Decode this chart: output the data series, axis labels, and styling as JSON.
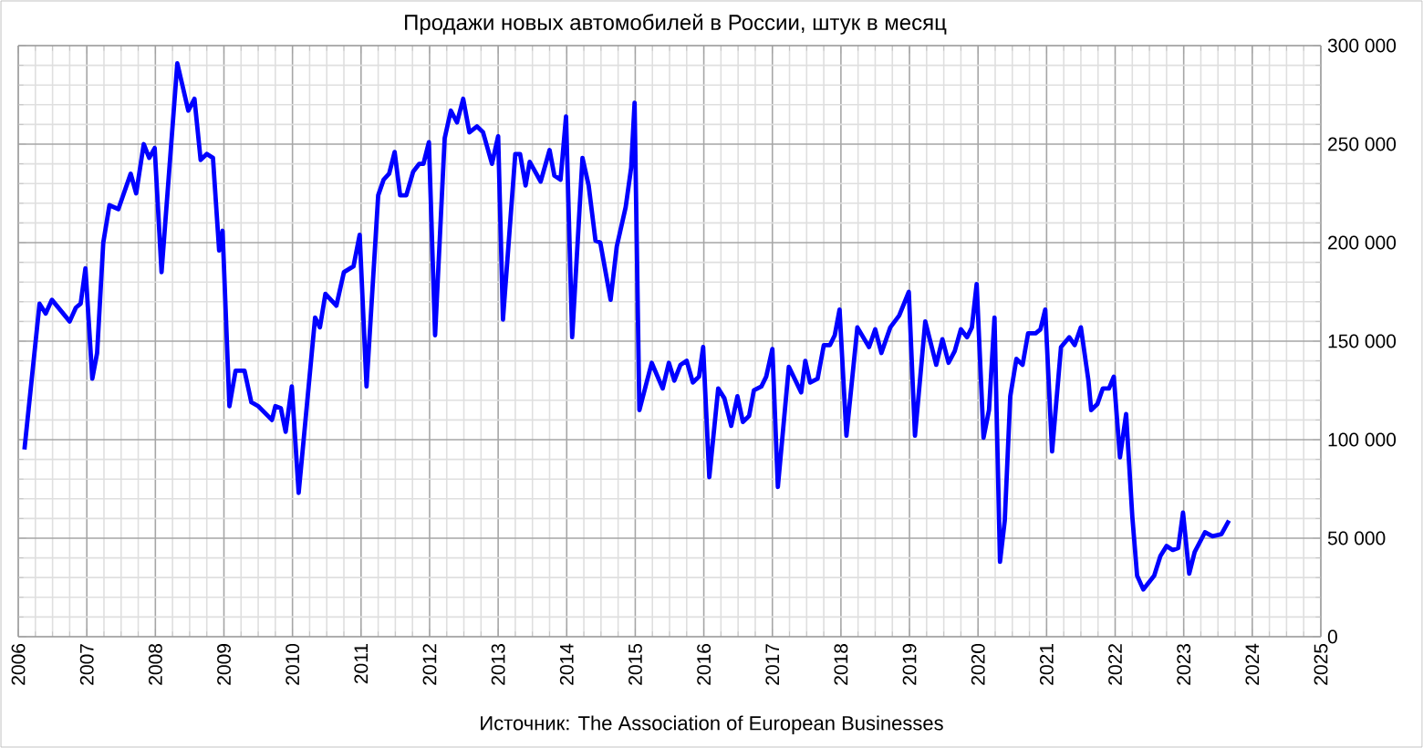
{
  "chart_data": {
    "type": "line",
    "title": "Продажи новых автомобилей в России, штук в месяц",
    "annotations": [
      "Источник: The Association of European Businesses"
    ],
    "x": [
      2006.09,
      2006.31,
      2006.4,
      2006.49,
      2006.75,
      2006.84,
      2006.91,
      2006.98,
      2007.08,
      2007.15,
      2007.24,
      2007.33,
      2007.46,
      2007.64,
      2007.72,
      2007.83,
      2007.91,
      2007.99,
      2008.09,
      2008.32,
      2008.48,
      2008.57,
      2008.66,
      2008.75,
      2008.84,
      2008.93,
      2008.98,
      2009.08,
      2009.17,
      2009.3,
      2009.4,
      2009.5,
      2009.7,
      2009.75,
      2009.83,
      2009.9,
      2009.99,
      2010.09,
      2010.33,
      2010.4,
      2010.48,
      2010.64,
      2010.75,
      2010.89,
      2010.98,
      2011.08,
      2011.25,
      2011.33,
      2011.41,
      2011.49,
      2011.57,
      2011.66,
      2011.76,
      2011.85,
      2011.91,
      2011.99,
      2012.08,
      2012.22,
      2012.31,
      2012.4,
      2012.49,
      2012.58,
      2012.69,
      2012.78,
      2012.91,
      2013.0,
      2013.07,
      2013.25,
      2013.32,
      2013.4,
      2013.46,
      2013.62,
      2013.75,
      2013.82,
      2013.91,
      2013.99,
      2014.08,
      2014.23,
      2014.32,
      2014.42,
      2014.49,
      2014.64,
      2014.73,
      2014.86,
      2014.94,
      2014.99,
      2015.06,
      2015.24,
      2015.4,
      2015.49,
      2015.57,
      2015.66,
      2015.75,
      2015.84,
      2015.93,
      2015.99,
      2016.08,
      2016.21,
      2016.3,
      2016.4,
      2016.49,
      2016.57,
      2016.66,
      2016.73,
      2016.84,
      2016.91,
      2017.0,
      2017.08,
      2017.24,
      2017.42,
      2017.48,
      2017.55,
      2017.66,
      2017.75,
      2017.84,
      2017.91,
      2017.98,
      2018.08,
      2018.24,
      2018.41,
      2018.5,
      2018.59,
      2018.72,
      2018.85,
      2018.99,
      2019.08,
      2019.23,
      2019.39,
      2019.48,
      2019.57,
      2019.66,
      2019.75,
      2019.84,
      2019.91,
      2019.98,
      2020.08,
      2020.16,
      2020.24,
      2020.32,
      2020.39,
      2020.47,
      2020.56,
      2020.65,
      2020.73,
      2020.84,
      2020.91,
      2020.98,
      2021.08,
      2021.21,
      2021.33,
      2021.41,
      2021.5,
      2021.61,
      2021.65,
      2021.74,
      2021.82,
      2021.91,
      2021.98,
      2022.07,
      2022.16,
      2022.25,
      2022.32,
      2022.41,
      2022.57,
      2022.66,
      2022.75,
      2022.84,
      2022.92,
      2022.99,
      2023.08,
      2023.16,
      2023.31,
      2023.42,
      2023.55,
      2023.66
    ],
    "series": [
      {
        "color": "#0000ff",
        "values": [
          95000,
          169000,
          164000,
          171000,
          160000,
          167000,
          169000,
          187000,
          131000,
          144000,
          200000,
          219000,
          217000,
          235000,
          225000,
          250000,
          243000,
          248000,
          185000,
          291000,
          267000,
          273000,
          242000,
          245000,
          243000,
          196000,
          206000,
          117000,
          135000,
          135000,
          119000,
          117000,
          110000,
          117000,
          116000,
          104000,
          127000,
          73000,
          162000,
          157000,
          174000,
          168000,
          185000,
          188000,
          204000,
          127000,
          224000,
          232000,
          235000,
          246000,
          224000,
          224000,
          236000,
          240000,
          240000,
          251000,
          153000,
          253000,
          267000,
          261000,
          273000,
          256000,
          259000,
          256000,
          240000,
          254000,
          161000,
          245000,
          245000,
          229000,
          241000,
          231000,
          247000,
          234000,
          232000,
          264000,
          152000,
          243000,
          229000,
          201000,
          200000,
          171000,
          198000,
          218000,
          238000,
          271000,
          115000,
          139000,
          126000,
          139000,
          130000,
          138000,
          140000,
          129000,
          132000,
          147000,
          81000,
          126000,
          121000,
          107000,
          122000,
          109000,
          112000,
          125000,
          127000,
          132000,
          146000,
          76000,
          137000,
          124000,
          140000,
          129000,
          131000,
          148000,
          148000,
          153000,
          166000,
          102000,
          157000,
          147000,
          156000,
          144000,
          157000,
          163000,
          175000,
          102000,
          160000,
          138000,
          151000,
          139000,
          145000,
          156000,
          152000,
          157000,
          179000,
          101000,
          115000,
          162000,
          38000,
          59000,
          122000,
          141000,
          138000,
          154000,
          154000,
          156000,
          166000,
          94000,
          147000,
          152000,
          148000,
          157000,
          130000,
          115000,
          118000,
          126000,
          126000,
          132000,
          91000,
          113000,
          61000,
          31000,
          24000,
          31000,
          41000,
          46000,
          44000,
          45000,
          63000,
          32000,
          43000,
          53000,
          51000,
          52000,
          59000
        ]
      }
    ],
    "xlim": [
      2006,
      2025
    ],
    "xticks": [
      2006,
      2007,
      2008,
      2009,
      2010,
      2011,
      2012,
      2013,
      2014,
      2015,
      2016,
      2017,
      2018,
      2019,
      2020,
      2021,
      2022,
      2023,
      2024,
      2025
    ],
    "ylim": [
      0,
      300000
    ],
    "yticks": [
      {
        "value": 0,
        "label": "0"
      },
      {
        "value": 50000,
        "label": "50 000"
      },
      {
        "value": 100000,
        "label": "100 000"
      },
      {
        "value": 150000,
        "label": "150 000"
      },
      {
        "value": 200000,
        "label": "200 000"
      },
      {
        "value": 250000,
        "label": "250 000"
      },
      {
        "value": 300000,
        "label": "300 000"
      }
    ],
    "grid": true
  }
}
